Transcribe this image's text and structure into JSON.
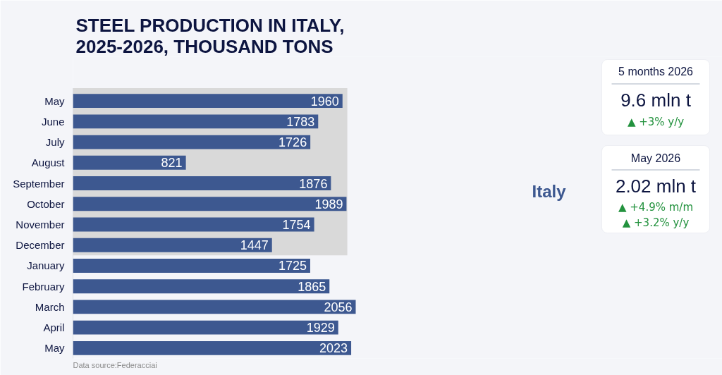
{
  "chart_data": {
    "type": "bar",
    "orientation": "horizontal",
    "title": "STEEL PRODUCTION IN ITALY, 2025-2026, THOUSAND TONS",
    "categories": [
      "May",
      "June",
      "July",
      "August",
      "September",
      "October",
      "November",
      "December",
      "January",
      "February",
      "March",
      "April",
      "May"
    ],
    "values": [
      1960,
      1783,
      1726,
      821,
      1876,
      1989,
      1754,
      1447,
      1725,
      1865,
      2056,
      1929,
      2023
    ],
    "color": "#3d5890",
    "data_labels": true,
    "bands": [
      {
        "axis": "y",
        "from": "May",
        "to": "December",
        "color": "#d9d9d9"
      }
    ],
    "annotations": [
      "Data source:Federacciai",
      "Italy",
      "5 months 2026",
      "9.6 mln t",
      "▲ +3% y/y",
      "May 2026",
      "2.02 mln t",
      "▲ +4.9% m/m",
      "▲ +3.2% y/y"
    ]
  }
}
